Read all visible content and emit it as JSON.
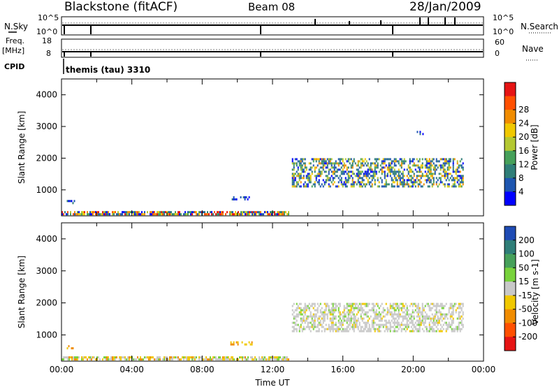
{
  "header": {
    "title": "Blackstone (fitACF)",
    "beam": "Beam 08",
    "date": "28/Jan/2009"
  },
  "status_panels": {
    "nsky": {
      "label": "N.Sky",
      "top_tick": "10^5",
      "bottom_tick": "10^0"
    },
    "nsearch": {
      "label": "N.Search",
      "top_tick": "10^5",
      "bottom_tick": "10^0"
    },
    "freq": {
      "label_line1": "Freq.",
      "label_line2": "[MHz]",
      "top_tick": "18",
      "bottom_tick": "8"
    },
    "nave": {
      "label": "Nave",
      "top_tick": "60",
      "bottom_tick": "0"
    },
    "cpid": {
      "label": "CPID",
      "value": "themis (tau) 3310"
    }
  },
  "chart_data": [
    {
      "type": "heatmap",
      "name": "power",
      "ylabel": "Slant Range [km]",
      "yticks": [
        "1000",
        "2000",
        "3000",
        "4000"
      ],
      "ylim": [
        180,
        4500
      ],
      "xlim": [
        0,
        24
      ],
      "colorbar": {
        "label": "Power [dB]",
        "ticks": [
          "4",
          "8",
          "12",
          "16",
          "20",
          "24",
          "28"
        ],
        "range": [
          0,
          32
        ]
      },
      "colors": [
        "#0000ff",
        "#1e56b0",
        "#2f7e78",
        "#46a05a",
        "#b4c832",
        "#f0c800",
        "#f08c00",
        "#ff5000",
        "#e61414"
      ],
      "regions": [
        {
          "x": [
            0.0,
            12.9
          ],
          "y": [
            200,
            330
          ],
          "level": "low-high mixed (near-range band)"
        },
        {
          "x": [
            13.1,
            22.8
          ],
          "y": [
            1100,
            2000
          ],
          "level": "mid (4-16 dB)"
        },
        {
          "x": [
            0.3,
            0.7
          ],
          "y": [
            560,
            680
          ],
          "level": "low"
        },
        {
          "x": [
            9.6,
            10.8
          ],
          "y": [
            700,
            800
          ],
          "level": "low"
        },
        {
          "x": [
            20.2,
            20.6
          ],
          "y": [
            2780,
            2860
          ],
          "level": "low"
        }
      ]
    },
    {
      "type": "heatmap",
      "name": "velocity",
      "xlabel": "Time UT",
      "ylabel": "Slant Range [km]",
      "xticks": [
        "00:00",
        "04:00",
        "08:00",
        "12:00",
        "16:00",
        "20:00",
        "00:00"
      ],
      "yticks": [
        "1000",
        "2000",
        "3000",
        "4000"
      ],
      "ylim": [
        180,
        4500
      ],
      "xlim": [
        0,
        24
      ],
      "colorbar": {
        "label": "Velocity [m s-1]",
        "ticks": [
          "200",
          "100",
          "50",
          "15",
          "-15",
          "-50",
          "-100",
          "-200"
        ],
        "range": [
          -250,
          250
        ]
      },
      "colors": [
        "#1e4bb4",
        "#2f7e78",
        "#46a05a",
        "#78d23c",
        "#c8c8c8",
        "#f0c800",
        "#f08c00",
        "#ff5000",
        "#e61414"
      ],
      "regions": [
        {
          "x": [
            0.0,
            12.9
          ],
          "y": [
            200,
            330
          ],
          "level": "near zero / slightly negative"
        },
        {
          "x": [
            13.1,
            22.8
          ],
          "y": [
            1100,
            2000
          ],
          "level": "-15 to 15 m/s (grey)"
        },
        {
          "x": [
            0.3,
            0.7
          ],
          "y": [
            560,
            680
          ],
          "level": "-50 to -15"
        },
        {
          "x": [
            9.6,
            10.8
          ],
          "y": [
            700,
            800
          ],
          "level": "-50 to -15"
        }
      ]
    }
  ]
}
